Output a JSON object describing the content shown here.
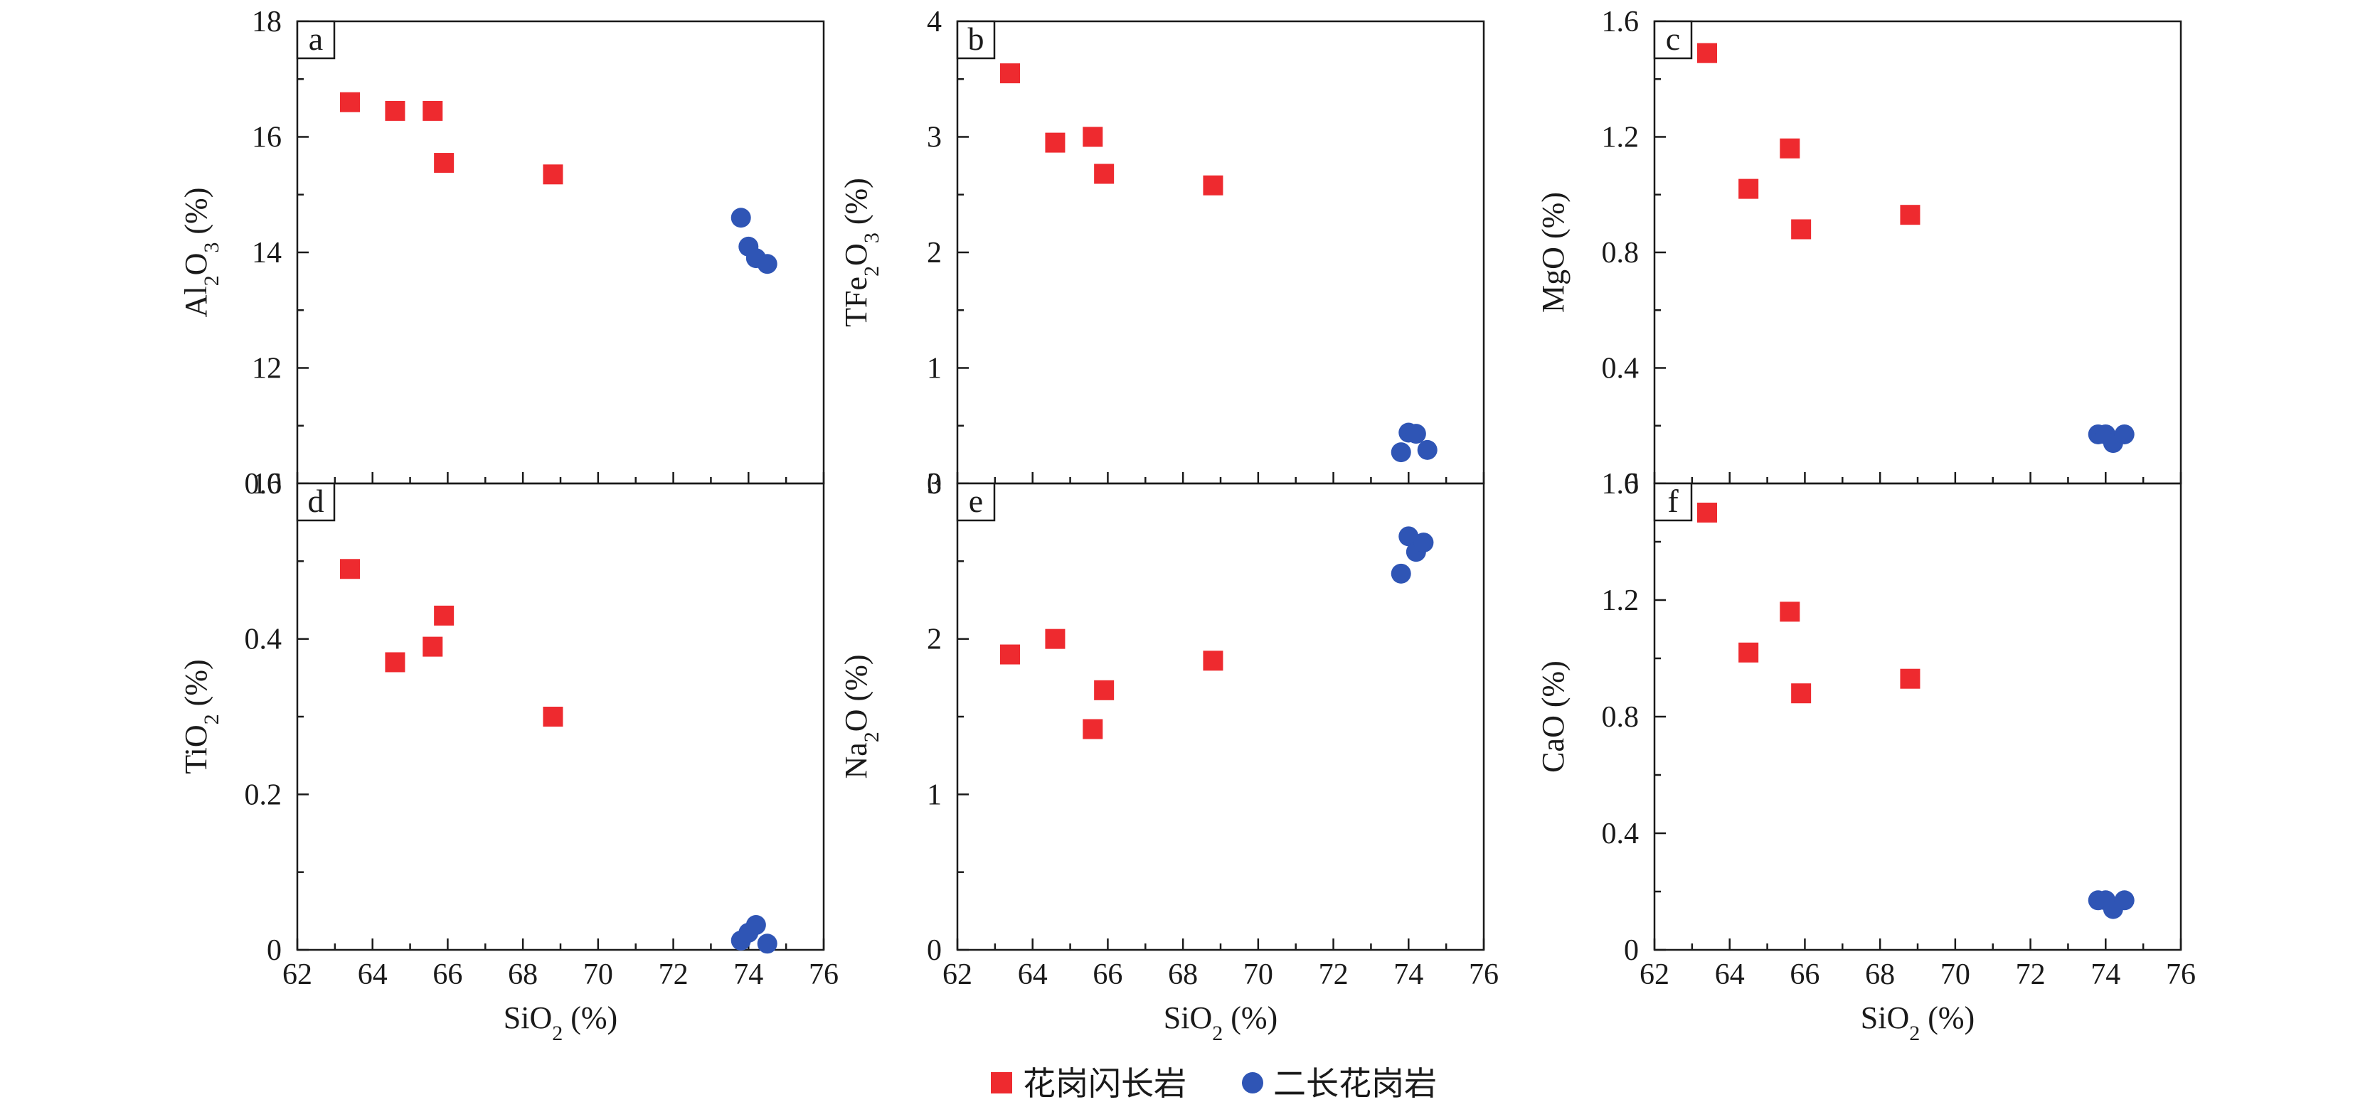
{
  "legend": [
    {
      "marker": "square",
      "color": "#ee2a2f",
      "label": "花岗闪长岩"
    },
    {
      "marker": "circle",
      "color": "#2f55b5",
      "label": "二长花岗岩"
    }
  ],
  "chart_data": [
    {
      "type": "scatter",
      "panel_label": "a",
      "ylabel_main": "Al",
      "ylabel_sub1": "2",
      "ylabel_mid": "O",
      "ylabel_sub2": "3",
      "ylabel_tail": " (%)",
      "xlabel_main": "SiO",
      "xlabel_sub": "2",
      "xlabel_tail": " (%)",
      "show_xlabel": false,
      "show_xticklabels": false,
      "xlim": [
        62,
        76
      ],
      "xticks": [
        62,
        64,
        66,
        68,
        70,
        72,
        74,
        76
      ],
      "ylim": [
        10,
        18
      ],
      "yticks": [
        10,
        12,
        14,
        16,
        18
      ],
      "yticklabels": [
        "10",
        "12",
        "14",
        "16",
        "18"
      ],
      "series": [
        {
          "name": "花岗闪长岩",
          "marker": "square",
          "color": "#ee2a2f",
          "x": [
            63.4,
            64.6,
            65.6,
            65.9,
            68.8
          ],
          "y": [
            16.6,
            16.45,
            16.45,
            15.55,
            15.35
          ]
        },
        {
          "name": "二长花岗岩",
          "marker": "circle",
          "color": "#2f55b5",
          "x": [
            73.8,
            74.0,
            74.2,
            74.5
          ],
          "y": [
            14.6,
            14.1,
            13.9,
            13.8
          ]
        }
      ]
    },
    {
      "type": "scatter",
      "panel_label": "b",
      "ylabel_main": "TFe",
      "ylabel_sub1": "2",
      "ylabel_mid": "O",
      "ylabel_sub2": "3",
      "ylabel_tail": " (%)",
      "xlabel_main": "SiO",
      "xlabel_sub": "2",
      "xlabel_tail": " (%)",
      "show_xlabel": false,
      "show_xticklabels": false,
      "xlim": [
        62,
        76
      ],
      "xticks": [
        62,
        64,
        66,
        68,
        70,
        72,
        74,
        76
      ],
      "ylim": [
        0,
        4
      ],
      "yticks": [
        0,
        1,
        2,
        3,
        4
      ],
      "yticklabels": [
        "0",
        "1",
        "2",
        "3",
        "4"
      ],
      "series": [
        {
          "name": "花岗闪长岩",
          "marker": "square",
          "color": "#ee2a2f",
          "x": [
            63.4,
            64.6,
            65.6,
            65.9,
            68.8
          ],
          "y": [
            3.55,
            2.95,
            3.0,
            2.68,
            2.58
          ]
        },
        {
          "name": "二长花岗岩",
          "marker": "circle",
          "color": "#2f55b5",
          "x": [
            73.8,
            74.0,
            74.2,
            74.5
          ],
          "y": [
            0.27,
            0.44,
            0.43,
            0.29
          ]
        }
      ]
    },
    {
      "type": "scatter",
      "panel_label": "c",
      "ylabel_main": "MgO",
      "ylabel_sub1": "",
      "ylabel_mid": "",
      "ylabel_sub2": "",
      "ylabel_tail": " (%)",
      "xlabel_main": "SiO",
      "xlabel_sub": "2",
      "xlabel_tail": " (%)",
      "show_xlabel": false,
      "show_xticklabels": false,
      "xlim": [
        62,
        76
      ],
      "xticks": [
        62,
        64,
        66,
        68,
        70,
        72,
        74,
        76
      ],
      "ylim": [
        0,
        1.6
      ],
      "yticks": [
        0,
        0.4,
        0.8,
        1.2,
        1.6
      ],
      "yticklabels": [
        "0",
        "0.4",
        "0.8",
        "1.2",
        "1.6"
      ],
      "series": [
        {
          "name": "花岗闪长岩",
          "marker": "square",
          "color": "#ee2a2f",
          "x": [
            63.4,
            64.5,
            65.6,
            65.9,
            68.8
          ],
          "y": [
            1.49,
            1.02,
            1.16,
            0.88,
            0.93
          ]
        },
        {
          "name": "二长花岗岩",
          "marker": "circle",
          "color": "#2f55b5",
          "x": [
            73.8,
            74.0,
            74.2,
            74.5
          ],
          "y": [
            0.17,
            0.17,
            0.14,
            0.17
          ]
        }
      ]
    },
    {
      "type": "scatter",
      "panel_label": "d",
      "ylabel_main": "TiO",
      "ylabel_sub1": "2",
      "ylabel_mid": "",
      "ylabel_sub2": "",
      "ylabel_tail": " (%)",
      "xlabel_main": "SiO",
      "xlabel_sub": "2",
      "xlabel_tail": " (%)",
      "show_xlabel": true,
      "show_xticklabels": true,
      "xlim": [
        62,
        76
      ],
      "xticks": [
        62,
        64,
        66,
        68,
        70,
        72,
        74,
        76
      ],
      "ylim": [
        0,
        0.6
      ],
      "yticks": [
        0,
        0.2,
        0.4,
        0.6
      ],
      "yticklabels": [
        "0",
        "0.2",
        "0.4",
        "0.6"
      ],
      "series": [
        {
          "name": "花岗闪长岩",
          "marker": "square",
          "color": "#ee2a2f",
          "x": [
            63.4,
            64.6,
            65.6,
            65.9,
            68.8
          ],
          "y": [
            0.49,
            0.37,
            0.39,
            0.43,
            0.3
          ]
        },
        {
          "name": "二长花岗岩",
          "marker": "circle",
          "color": "#2f55b5",
          "x": [
            73.8,
            74.0,
            74.2,
            74.5
          ],
          "y": [
            0.012,
            0.022,
            0.032,
            0.008
          ]
        }
      ]
    },
    {
      "type": "scatter",
      "panel_label": "e",
      "ylabel_main": "Na",
      "ylabel_sub1": "2",
      "ylabel_mid": "O",
      "ylabel_sub2": "",
      "ylabel_tail": " (%)",
      "xlabel_main": "SiO",
      "xlabel_sub": "2",
      "xlabel_tail": " (%)",
      "show_xlabel": true,
      "show_xticklabels": true,
      "xlim": [
        62,
        76
      ],
      "xticks": [
        62,
        64,
        66,
        68,
        70,
        72,
        74,
        76
      ],
      "ylim": [
        0,
        3
      ],
      "yticks": [
        0,
        1,
        2,
        3
      ],
      "yticklabels": [
        "0",
        "1",
        "2",
        "3"
      ],
      "series": [
        {
          "name": "花岗闪长岩",
          "marker": "square",
          "color": "#ee2a2f",
          "x": [
            63.4,
            64.6,
            65.6,
            65.9,
            68.8
          ],
          "y": [
            1.9,
            2.0,
            1.42,
            1.67,
            1.86
          ]
        },
        {
          "name": "二长花岗岩",
          "marker": "circle",
          "color": "#2f55b5",
          "x": [
            73.8,
            74.0,
            74.2,
            74.4
          ],
          "y": [
            2.42,
            2.66,
            2.56,
            2.62
          ]
        }
      ]
    },
    {
      "type": "scatter",
      "panel_label": "f",
      "ylabel_main": "CaO",
      "ylabel_sub1": "",
      "ylabel_mid": "",
      "ylabel_sub2": "",
      "ylabel_tail": " (%)",
      "xlabel_main": "SiO",
      "xlabel_sub": "2",
      "xlabel_tail": " (%)",
      "show_xlabel": true,
      "show_xticklabels": true,
      "xlim": [
        62,
        76
      ],
      "xticks": [
        62,
        64,
        66,
        68,
        70,
        72,
        74,
        76
      ],
      "ylim": [
        0,
        1.6
      ],
      "yticks": [
        0,
        0.4,
        0.8,
        1.2,
        1.6
      ],
      "yticklabels": [
        "0",
        "0.4",
        "0.8",
        "1.2",
        "1.6"
      ],
      "series": [
        {
          "name": "花岗闪长岩",
          "marker": "square",
          "color": "#ee2a2f",
          "x": [
            63.4,
            64.5,
            65.6,
            65.9,
            68.8
          ],
          "y": [
            1.5,
            1.02,
            1.16,
            0.88,
            0.93
          ]
        },
        {
          "name": "二长花岗岩",
          "marker": "circle",
          "color": "#2f55b5",
          "x": [
            73.8,
            74.0,
            74.2,
            74.5
          ],
          "y": [
            0.17,
            0.17,
            0.14,
            0.17
          ]
        }
      ]
    }
  ]
}
